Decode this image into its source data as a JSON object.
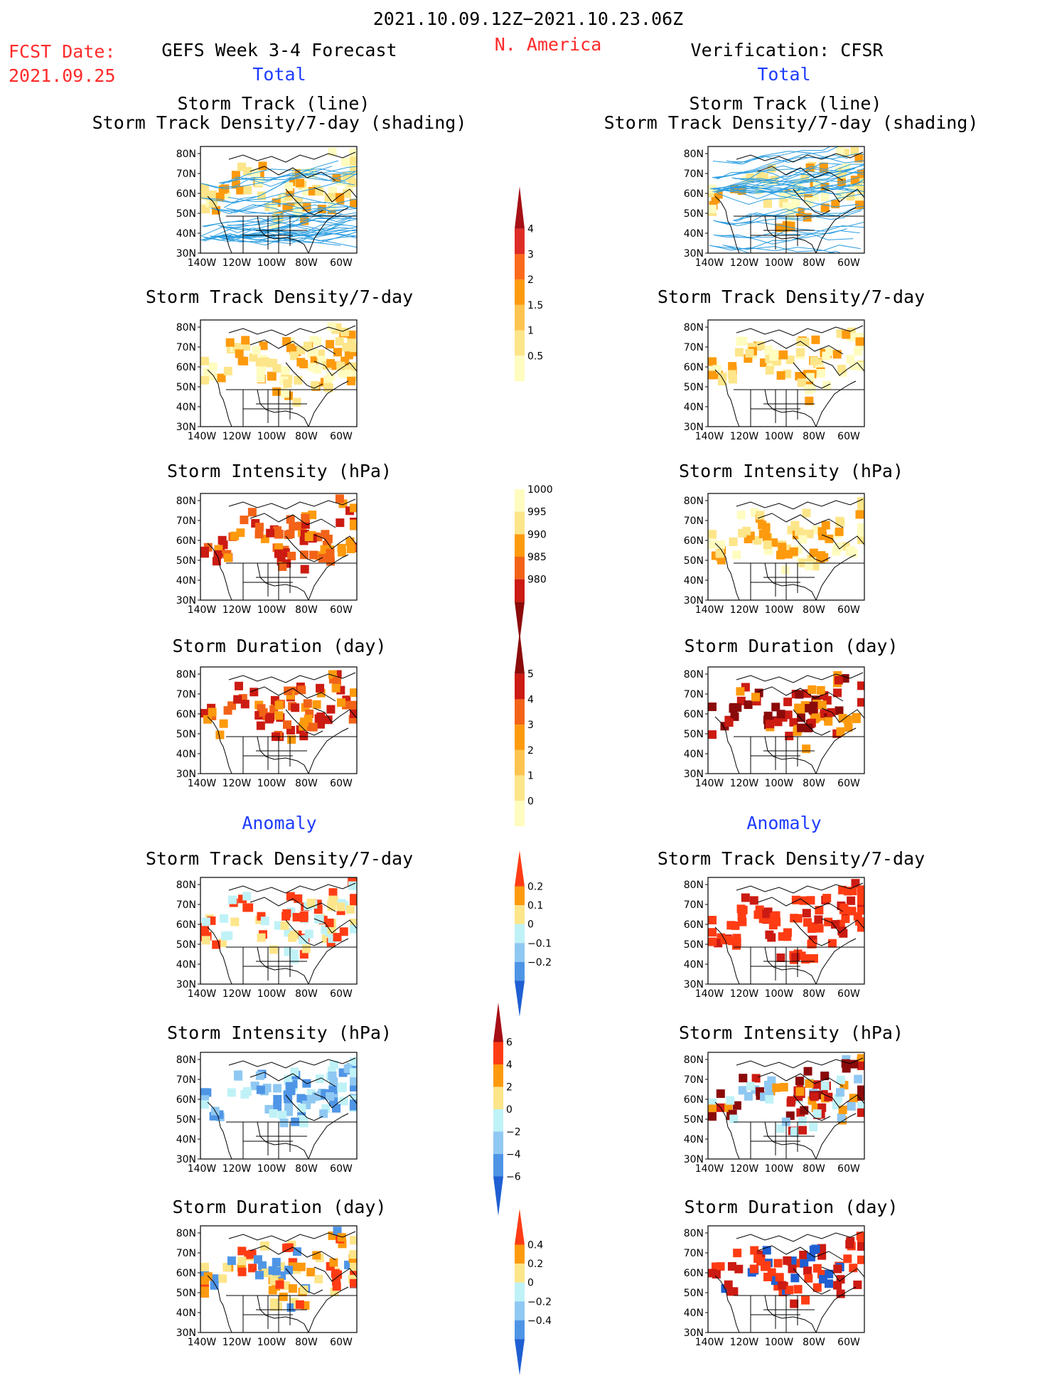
{
  "header": {
    "period": "2021.10.09.12Z−2021.10.23.06Z",
    "region": "N. America",
    "fcst_label": "FCST Date:",
    "fcst_date": "2021.09.25",
    "left_title": "GEFS Week 3-4 Forecast",
    "right_title": "Verification: CFSR",
    "total": "Total",
    "anomaly": "Anomaly"
  },
  "panel_titles": {
    "track1": "Storm Track (line)",
    "track2": "Storm Track Density/7-day (shading)",
    "density": "Storm Track Density/7-day",
    "intensity": "Storm Intensity (hPa)",
    "duration": "Storm Duration (day)"
  },
  "axes": {
    "lat_ticks": [
      "80N",
      "70N",
      "60N",
      "50N",
      "40N",
      "30N"
    ],
    "lon_ticks": [
      "140W",
      "120W",
      "100W",
      "80W",
      "60W"
    ]
  },
  "colorbars": {
    "density_total": {
      "labels": [
        "4",
        "3",
        "2",
        "1.5",
        "1",
        "0.5"
      ],
      "colors": [
        "#a50f15",
        "#de2d26",
        "#fc6a1c",
        "#fd9a0e",
        "#fec44f",
        "#fde58a",
        "#fffcc0"
      ],
      "ends": "top"
    },
    "intensity_total": {
      "labels": [
        "1000",
        "995",
        "990",
        "985",
        "980"
      ],
      "colors": [
        "#fffcc0",
        "#fde58a",
        "#fd9a0e",
        "#f26318",
        "#cc1b12",
        "#8b0a0a"
      ],
      "ends": "bottom"
    },
    "duration_total": {
      "labels": [
        "5",
        "4",
        "3",
        "2",
        "1",
        "0"
      ],
      "colors": [
        "#8b0a0a",
        "#cc1b12",
        "#f26318",
        "#fd9a0e",
        "#fec44f",
        "#fde58a",
        "#fffcc0"
      ],
      "ends": "top"
    },
    "density_anom": {
      "labels": [
        "0.2",
        "0.1",
        "0",
        "−0.1",
        "−0.2"
      ],
      "colors": [
        "#ff3c14",
        "#fd9a0e",
        "#fde58a",
        "#bff2f7",
        "#8fc8f2",
        "#4f95e6",
        "#1f5fd2"
      ],
      "ends": "both"
    },
    "intensity_anom": {
      "labels": [
        "6",
        "4",
        "2",
        "0",
        "−2",
        "−4",
        "−6"
      ],
      "colors": [
        "#a50f15",
        "#ff3c14",
        "#fd9a0e",
        "#fde58a",
        "#bff2f7",
        "#8fc8f2",
        "#4f95e6",
        "#1f5fd2"
      ],
      "ends": "both"
    },
    "duration_anom": {
      "labels": [
        "0.4",
        "0.2",
        "0",
        "−0.2",
        "−0.4"
      ],
      "colors": [
        "#ff3c14",
        "#fd9a0e",
        "#fde58a",
        "#bff2f7",
        "#8fc8f2",
        "#4f95e6",
        "#1f5fd2"
      ],
      "ends": "both"
    }
  }
}
